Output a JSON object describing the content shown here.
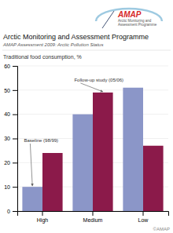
{
  "chart_data": {
    "type": "bar",
    "title": "Arctic Monitoring and Assessment Programme",
    "subtitle": "AMAP Assessment 2009: Arctic Pollution Status",
    "y_label": "Traditional food consumption, %",
    "categories": [
      "High",
      "Medium",
      "Low"
    ],
    "series": [
      {
        "name": "Baseline (98/99)",
        "color": "#8b96c8",
        "values": [
          10,
          40,
          51
        ]
      },
      {
        "name": "Follow-up study (05/06)",
        "color": "#8b1a4a",
        "values": [
          24,
          49,
          27
        ]
      }
    ],
    "ylim": [
      0,
      60
    ],
    "yticks": [
      0,
      10,
      20,
      30,
      40,
      50,
      60
    ],
    "grid": true,
    "annotations": [
      "AMAP",
      "Arctic Monitoring and",
      "Assessment Programme",
      "©AMAP"
    ]
  }
}
